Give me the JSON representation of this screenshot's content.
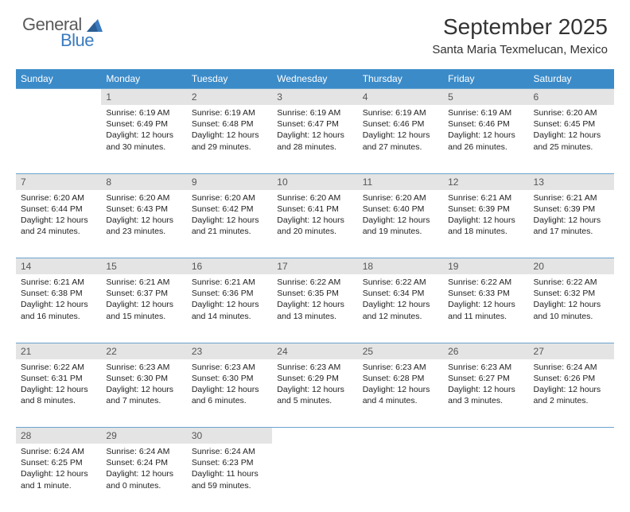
{
  "logo": {
    "text1": "General",
    "text2": "Blue"
  },
  "title": "September 2025",
  "location": "Santa Maria Texmelucan, Mexico",
  "colors": {
    "header_bg": "#3b8bc9",
    "header_text": "#ffffff",
    "daynum_bg": "#e4e4e4",
    "border": "#6aa3cf",
    "logo_gray": "#5a5a5a",
    "logo_blue": "#3b7bbf"
  },
  "weekdays": [
    "Sunday",
    "Monday",
    "Tuesday",
    "Wednesday",
    "Thursday",
    "Friday",
    "Saturday"
  ],
  "weeks": [
    {
      "nums": [
        "",
        "1",
        "2",
        "3",
        "4",
        "5",
        "6"
      ],
      "cells": [
        null,
        {
          "sunrise": "Sunrise: 6:19 AM",
          "sunset": "Sunset: 6:49 PM",
          "day1": "Daylight: 12 hours",
          "day2": "and 30 minutes."
        },
        {
          "sunrise": "Sunrise: 6:19 AM",
          "sunset": "Sunset: 6:48 PM",
          "day1": "Daylight: 12 hours",
          "day2": "and 29 minutes."
        },
        {
          "sunrise": "Sunrise: 6:19 AM",
          "sunset": "Sunset: 6:47 PM",
          "day1": "Daylight: 12 hours",
          "day2": "and 28 minutes."
        },
        {
          "sunrise": "Sunrise: 6:19 AM",
          "sunset": "Sunset: 6:46 PM",
          "day1": "Daylight: 12 hours",
          "day2": "and 27 minutes."
        },
        {
          "sunrise": "Sunrise: 6:19 AM",
          "sunset": "Sunset: 6:46 PM",
          "day1": "Daylight: 12 hours",
          "day2": "and 26 minutes."
        },
        {
          "sunrise": "Sunrise: 6:20 AM",
          "sunset": "Sunset: 6:45 PM",
          "day1": "Daylight: 12 hours",
          "day2": "and 25 minutes."
        }
      ]
    },
    {
      "nums": [
        "7",
        "8",
        "9",
        "10",
        "11",
        "12",
        "13"
      ],
      "cells": [
        {
          "sunrise": "Sunrise: 6:20 AM",
          "sunset": "Sunset: 6:44 PM",
          "day1": "Daylight: 12 hours",
          "day2": "and 24 minutes."
        },
        {
          "sunrise": "Sunrise: 6:20 AM",
          "sunset": "Sunset: 6:43 PM",
          "day1": "Daylight: 12 hours",
          "day2": "and 23 minutes."
        },
        {
          "sunrise": "Sunrise: 6:20 AM",
          "sunset": "Sunset: 6:42 PM",
          "day1": "Daylight: 12 hours",
          "day2": "and 21 minutes."
        },
        {
          "sunrise": "Sunrise: 6:20 AM",
          "sunset": "Sunset: 6:41 PM",
          "day1": "Daylight: 12 hours",
          "day2": "and 20 minutes."
        },
        {
          "sunrise": "Sunrise: 6:20 AM",
          "sunset": "Sunset: 6:40 PM",
          "day1": "Daylight: 12 hours",
          "day2": "and 19 minutes."
        },
        {
          "sunrise": "Sunrise: 6:21 AM",
          "sunset": "Sunset: 6:39 PM",
          "day1": "Daylight: 12 hours",
          "day2": "and 18 minutes."
        },
        {
          "sunrise": "Sunrise: 6:21 AM",
          "sunset": "Sunset: 6:39 PM",
          "day1": "Daylight: 12 hours",
          "day2": "and 17 minutes."
        }
      ]
    },
    {
      "nums": [
        "14",
        "15",
        "16",
        "17",
        "18",
        "19",
        "20"
      ],
      "cells": [
        {
          "sunrise": "Sunrise: 6:21 AM",
          "sunset": "Sunset: 6:38 PM",
          "day1": "Daylight: 12 hours",
          "day2": "and 16 minutes."
        },
        {
          "sunrise": "Sunrise: 6:21 AM",
          "sunset": "Sunset: 6:37 PM",
          "day1": "Daylight: 12 hours",
          "day2": "and 15 minutes."
        },
        {
          "sunrise": "Sunrise: 6:21 AM",
          "sunset": "Sunset: 6:36 PM",
          "day1": "Daylight: 12 hours",
          "day2": "and 14 minutes."
        },
        {
          "sunrise": "Sunrise: 6:22 AM",
          "sunset": "Sunset: 6:35 PM",
          "day1": "Daylight: 12 hours",
          "day2": "and 13 minutes."
        },
        {
          "sunrise": "Sunrise: 6:22 AM",
          "sunset": "Sunset: 6:34 PM",
          "day1": "Daylight: 12 hours",
          "day2": "and 12 minutes."
        },
        {
          "sunrise": "Sunrise: 6:22 AM",
          "sunset": "Sunset: 6:33 PM",
          "day1": "Daylight: 12 hours",
          "day2": "and 11 minutes."
        },
        {
          "sunrise": "Sunrise: 6:22 AM",
          "sunset": "Sunset: 6:32 PM",
          "day1": "Daylight: 12 hours",
          "day2": "and 10 minutes."
        }
      ]
    },
    {
      "nums": [
        "21",
        "22",
        "23",
        "24",
        "25",
        "26",
        "27"
      ],
      "cells": [
        {
          "sunrise": "Sunrise: 6:22 AM",
          "sunset": "Sunset: 6:31 PM",
          "day1": "Daylight: 12 hours",
          "day2": "and 8 minutes."
        },
        {
          "sunrise": "Sunrise: 6:23 AM",
          "sunset": "Sunset: 6:30 PM",
          "day1": "Daylight: 12 hours",
          "day2": "and 7 minutes."
        },
        {
          "sunrise": "Sunrise: 6:23 AM",
          "sunset": "Sunset: 6:30 PM",
          "day1": "Daylight: 12 hours",
          "day2": "and 6 minutes."
        },
        {
          "sunrise": "Sunrise: 6:23 AM",
          "sunset": "Sunset: 6:29 PM",
          "day1": "Daylight: 12 hours",
          "day2": "and 5 minutes."
        },
        {
          "sunrise": "Sunrise: 6:23 AM",
          "sunset": "Sunset: 6:28 PM",
          "day1": "Daylight: 12 hours",
          "day2": "and 4 minutes."
        },
        {
          "sunrise": "Sunrise: 6:23 AM",
          "sunset": "Sunset: 6:27 PM",
          "day1": "Daylight: 12 hours",
          "day2": "and 3 minutes."
        },
        {
          "sunrise": "Sunrise: 6:24 AM",
          "sunset": "Sunset: 6:26 PM",
          "day1": "Daylight: 12 hours",
          "day2": "and 2 minutes."
        }
      ]
    },
    {
      "nums": [
        "28",
        "29",
        "30",
        "",
        "",
        "",
        ""
      ],
      "cells": [
        {
          "sunrise": "Sunrise: 6:24 AM",
          "sunset": "Sunset: 6:25 PM",
          "day1": "Daylight: 12 hours",
          "day2": "and 1 minute."
        },
        {
          "sunrise": "Sunrise: 6:24 AM",
          "sunset": "Sunset: 6:24 PM",
          "day1": "Daylight: 12 hours",
          "day2": "and 0 minutes."
        },
        {
          "sunrise": "Sunrise: 6:24 AM",
          "sunset": "Sunset: 6:23 PM",
          "day1": "Daylight: 11 hours",
          "day2": "and 59 minutes."
        },
        null,
        null,
        null,
        null
      ]
    }
  ]
}
